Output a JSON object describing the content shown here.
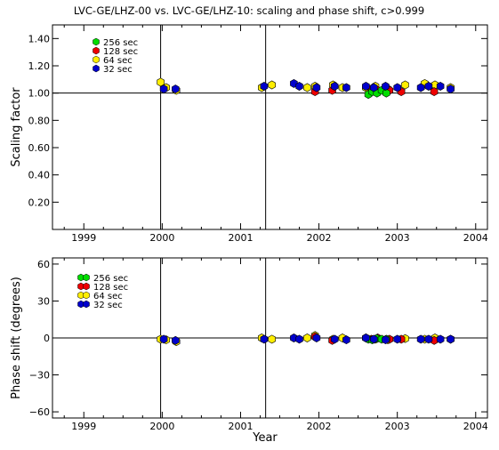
{
  "chart_data": [
    {
      "type": "scatter",
      "title": "LVC-GE/LHZ-00 vs. LVC-GE/LHZ-10: scaling and phase shift, c>0.999",
      "ylabel": "Scaling factor",
      "xlabel": "",
      "xlim": [
        1998.6,
        2004.15
      ],
      "ylim": [
        0.0,
        1.5
      ],
      "x_ticks": [
        1999,
        2000,
        2001,
        2002,
        2003,
        2004
      ],
      "y_ticks": [
        0.2,
        0.4,
        0.6,
        0.8,
        1.0,
        1.2,
        1.4
      ],
      "y_tick_labels": [
        "0.20",
        "0.40",
        "0.60",
        "0.80",
        "1.00",
        "1.20",
        "1.40"
      ],
      "ref_line": 1.0,
      "vlines": [
        1999.98,
        2001.32
      ],
      "legend_position": "top-left",
      "series": [
        {
          "name": "256 sec",
          "color": "#00dd00",
          "x": [
            2002.63,
            2002.68,
            2002.74,
            2002.8,
            2002.86
          ],
          "y": [
            0.99,
            1.01,
            1.0,
            1.02,
            1.0
          ]
        },
        {
          "name": "128 sec",
          "color": "#ee0000",
          "x": [
            2001.95,
            2002.17,
            2002.67,
            2002.75,
            2002.9,
            2003.05,
            2003.47
          ],
          "y": [
            1.01,
            1.02,
            1.03,
            1.02,
            1.02,
            1.01,
            1.01
          ]
        },
        {
          "name": "64 sec",
          "color": "#ffee00",
          "x": [
            1999.98,
            2000.05,
            2000.18,
            2001.27,
            2001.4,
            2001.85,
            2001.95,
            2002.18,
            2002.3,
            2002.6,
            2002.72,
            2002.88,
            2003.1,
            2003.35,
            2003.48,
            2003.68
          ],
          "y": [
            1.08,
            1.04,
            1.02,
            1.04,
            1.06,
            1.04,
            1.05,
            1.06,
            1.04,
            1.04,
            1.05,
            1.03,
            1.06,
            1.07,
            1.06,
            1.04
          ]
        },
        {
          "name": "32 sec",
          "color": "#0000cc",
          "x": [
            2000.02,
            2000.17,
            2001.3,
            2001.68,
            2001.75,
            2001.97,
            2002.2,
            2002.35,
            2002.6,
            2002.7,
            2002.85,
            2003.0,
            2003.3,
            2003.4,
            2003.55,
            2003.68
          ],
          "y": [
            1.03,
            1.03,
            1.05,
            1.07,
            1.05,
            1.04,
            1.05,
            1.04,
            1.05,
            1.04,
            1.05,
            1.04,
            1.04,
            1.05,
            1.05,
            1.03
          ]
        }
      ]
    },
    {
      "type": "scatter",
      "ylabel": "Phase shift (degrees)",
      "xlabel": "Year",
      "xlim": [
        1998.6,
        2004.15
      ],
      "ylim": [
        -65,
        65
      ],
      "x_ticks": [
        1999,
        2000,
        2001,
        2002,
        2003,
        2004
      ],
      "y_ticks": [
        -60,
        -30,
        0,
        30,
        60
      ],
      "y_tick_labels": [
        "−60",
        "−30",
        "0",
        "30",
        "60"
      ],
      "ref_line": 0,
      "vlines": [
        1999.98,
        2001.32
      ],
      "legend_position": "top-left",
      "series": [
        {
          "name": "256 sec",
          "color": "#00dd00",
          "x": [
            2002.63,
            2002.68,
            2002.74,
            2002.8,
            2002.86
          ],
          "y": [
            -1.0,
            -1.5,
            -0.5,
            -1.0,
            -1.0
          ]
        },
        {
          "name": "128 sec",
          "color": "#ee0000",
          "x": [
            2001.95,
            2002.17,
            2002.67,
            2002.75,
            2002.9,
            2003.05,
            2003.47
          ],
          "y": [
            1.0,
            -2.0,
            -1.0,
            0.0,
            -1.0,
            -1.0,
            -2.0
          ]
        },
        {
          "name": "64 sec",
          "color": "#ffee00",
          "x": [
            1999.98,
            2000.05,
            2000.18,
            2001.27,
            2001.4,
            2001.85,
            2001.95,
            2002.18,
            2002.3,
            2002.6,
            2002.72,
            2002.88,
            2003.1,
            2003.35,
            2003.48,
            2003.68
          ],
          "y": [
            -1.0,
            -1.5,
            -3.0,
            0.0,
            -1.0,
            0.0,
            2.0,
            -1.0,
            0.0,
            0.0,
            -1.0,
            -1.5,
            -0.5,
            -1.0,
            0.0,
            -1.0
          ]
        },
        {
          "name": "32 sec",
          "color": "#0000cc",
          "x": [
            2000.02,
            2000.17,
            2001.3,
            2001.68,
            2001.75,
            2001.97,
            2002.2,
            2002.35,
            2002.6,
            2002.7,
            2002.85,
            2003.0,
            2003.3,
            2003.4,
            2003.55,
            2003.68
          ],
          "y": [
            -1.0,
            -2.0,
            -1.0,
            0.0,
            -1.0,
            0.0,
            -1.0,
            -1.5,
            0.0,
            -1.0,
            -1.5,
            -1.0,
            -1.0,
            -1.0,
            -1.0,
            -1.0
          ]
        }
      ]
    }
  ]
}
